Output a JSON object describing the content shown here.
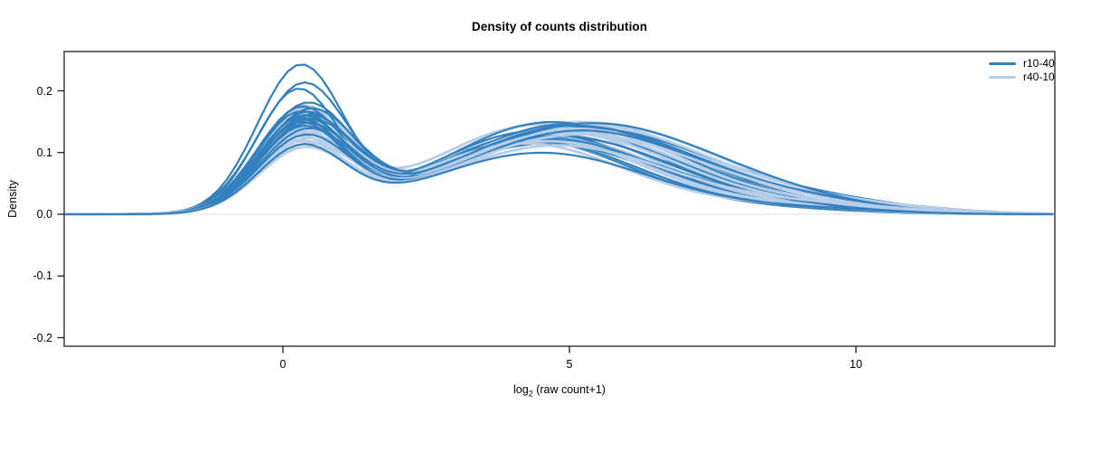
{
  "title": "Density of counts distribution",
  "axes": {
    "ylabel": "Density",
    "xlabel": {
      "prefix": "log",
      "sub": "2",
      "suffix": " (raw count+1)"
    },
    "y_ticks": [
      "0.2",
      "0.1",
      "0.0",
      "-0.1",
      "-0.2"
    ],
    "x_ticks": [
      "0",
      "5",
      "10"
    ]
  },
  "legend": {
    "items": [
      {
        "label": "r10-40",
        "color": "#3380bd"
      },
      {
        "label": "r40-10",
        "color": "#b8cee8"
      }
    ]
  },
  "plot": {
    "border_color": "#4a4a4a",
    "baseline_color": "#ececec",
    "tick_color": "#1a1a1a"
  },
  "chart_data": {
    "type": "line",
    "title": "Density of counts distribution",
    "xlabel": "log2 (raw count+1)",
    "ylabel": "Density",
    "xlim": [
      -3.82,
      13.47
    ],
    "ylim": [
      -0.2,
      0.265
    ],
    "x_tick_values": [
      0,
      5,
      10
    ],
    "y_tick_values": [
      -0.2,
      -0.1,
      0.0,
      0.1,
      0.2
    ],
    "grid": false,
    "legend_position": "top-right",
    "description": "Overlaid per-sample density curves of log2(raw count+1). Each curve is bimodal: a sharp low-count peak near x=0.3 (density 0.10-0.235) and a broad mid-count hump near x=4.5-5.4 (density 0.10-0.15), decaying to 0 by x=10-13.",
    "curve_model": "y(x) = a*exp(-(x-m1)^2/(2*s1^2)) + b*exp(-(x-m2)^2/(2*s2^2)) + t*exp(-(x-m3)^2/4.5); params per curve: [a,m1,s1,b,m2,s2,t,m3]",
    "series_groups": [
      {
        "name": "r10-40",
        "color": "#3380bd",
        "line_width": 2.2,
        "curves": [
          [
            0.235,
            0.3,
            0.75,
            0.115,
            4.6,
            1.9,
            0.01,
            9.0
          ],
          [
            0.205,
            0.35,
            0.78,
            0.125,
            4.9,
            2.0,
            0.008,
            9.5
          ],
          [
            0.195,
            0.25,
            0.72,
            0.135,
            4.4,
            1.8,
            0.012,
            8.8
          ],
          [
            0.17,
            0.4,
            0.8,
            0.145,
            5.1,
            2.1,
            0.006,
            9.8
          ],
          [
            0.165,
            0.3,
            0.76,
            0.15,
            4.7,
            1.9,
            0.01,
            9.2
          ],
          [
            0.16,
            0.45,
            0.82,
            0.14,
            5.3,
            2.2,
            0.014,
            9.6
          ],
          [
            0.158,
            0.28,
            0.74,
            0.132,
            4.5,
            1.85,
            0.009,
            8.6
          ],
          [
            0.155,
            0.38,
            0.79,
            0.147,
            5.0,
            2.05,
            0.007,
            9.4
          ],
          [
            0.152,
            0.33,
            0.77,
            0.128,
            4.8,
            1.95,
            0.011,
            9.0
          ],
          [
            0.15,
            0.42,
            0.81,
            0.142,
            5.2,
            2.15,
            0.013,
            10.0
          ],
          [
            0.148,
            0.27,
            0.73,
            0.12,
            4.3,
            1.8,
            0.008,
            8.5
          ],
          [
            0.146,
            0.36,
            0.78,
            0.138,
            4.9,
            2.0,
            0.01,
            9.3
          ],
          [
            0.144,
            0.31,
            0.75,
            0.125,
            4.6,
            1.9,
            0.012,
            9.7
          ],
          [
            0.142,
            0.44,
            0.83,
            0.148,
            5.4,
            2.25,
            0.006,
            9.1
          ],
          [
            0.14,
            0.29,
            0.74,
            0.118,
            4.4,
            1.85,
            0.009,
            8.9
          ],
          [
            0.137,
            0.39,
            0.8,
            0.144,
            5.1,
            2.1,
            0.011,
            9.5
          ],
          [
            0.134,
            0.34,
            0.77,
            0.122,
            4.7,
            1.95,
            0.007,
            9.9
          ],
          [
            0.13,
            0.41,
            0.81,
            0.136,
            5.2,
            2.1,
            0.013,
            9.2
          ],
          [
            0.12,
            0.37,
            0.79,
            0.112,
            4.8,
            2.0,
            0.01,
            8.7
          ],
          [
            0.105,
            0.32,
            0.76,
            0.1,
            4.5,
            1.9,
            0.008,
            9.0
          ]
        ]
      },
      {
        "name": "r40-10",
        "color": "#b8cee8",
        "line_width": 2.8,
        "curves": [
          [
            0.165,
            0.35,
            0.8,
            0.138,
            4.8,
            2.0,
            0.01,
            9.3
          ],
          [
            0.16,
            0.3,
            0.77,
            0.146,
            4.5,
            1.9,
            0.012,
            9.0
          ],
          [
            0.156,
            0.42,
            0.82,
            0.15,
            5.2,
            2.15,
            0.008,
            9.6
          ],
          [
            0.152,
            0.28,
            0.75,
            0.128,
            4.4,
            1.85,
            0.011,
            8.8
          ],
          [
            0.15,
            0.38,
            0.8,
            0.142,
            5.0,
            2.05,
            0.009,
            9.4
          ],
          [
            0.147,
            0.33,
            0.78,
            0.125,
            4.7,
            1.95,
            0.013,
            9.8
          ],
          [
            0.144,
            0.45,
            0.83,
            0.148,
            5.4,
            2.2,
            0.007,
            9.1
          ],
          [
            0.141,
            0.27,
            0.74,
            0.12,
            4.3,
            1.8,
            0.01,
            8.6
          ],
          [
            0.138,
            0.36,
            0.79,
            0.14,
            4.9,
            2.0,
            0.012,
            9.5
          ],
          [
            0.135,
            0.31,
            0.76,
            0.124,
            4.6,
            1.9,
            0.008,
            9.2
          ],
          [
            0.132,
            0.43,
            0.82,
            0.145,
            5.3,
            2.2,
            0.011,
            9.9
          ],
          [
            0.129,
            0.29,
            0.75,
            0.118,
            4.4,
            1.85,
            0.009,
            8.9
          ],
          [
            0.126,
            0.4,
            0.81,
            0.139,
            5.1,
            2.1,
            0.013,
            9.4
          ],
          [
            0.123,
            0.34,
            0.77,
            0.122,
            4.7,
            1.95,
            0.007,
            9.0
          ],
          [
            0.12,
            0.39,
            0.8,
            0.135,
            5.0,
            2.05,
            0.01,
            9.7
          ],
          [
            0.117,
            0.26,
            0.73,
            0.115,
            4.2,
            1.8,
            0.012,
            8.5
          ],
          [
            0.114,
            0.37,
            0.79,
            0.132,
            4.9,
            2.0,
            0.008,
            9.3
          ],
          [
            0.11,
            0.32,
            0.76,
            0.119,
            4.6,
            1.9,
            0.011,
            9.6
          ],
          [
            0.105,
            0.41,
            0.81,
            0.13,
            5.2,
            2.15,
            0.009,
            9.1
          ],
          [
            0.1,
            0.35,
            0.78,
            0.112,
            4.8,
            2.0,
            0.013,
            9.5
          ]
        ]
      }
    ]
  }
}
